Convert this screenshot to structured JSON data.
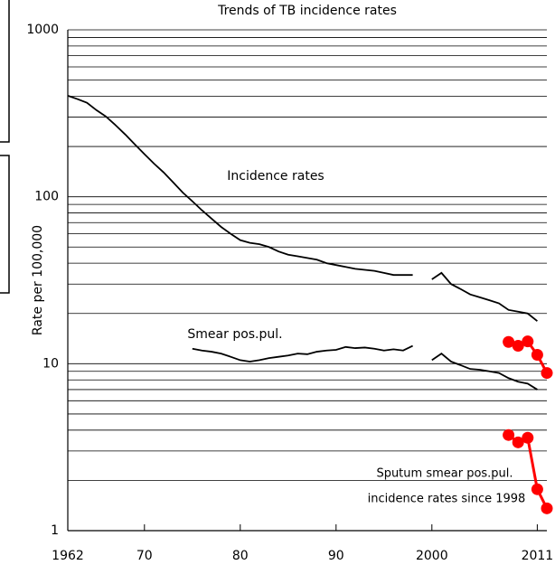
{
  "chart_data": {
    "type": "line",
    "title": "Trends of TB incidence rates",
    "ylabel": "Rate per 100,000",
    "log_y": true,
    "grid": true,
    "minor_grid": true,
    "xlim": [
      1962,
      2012
    ],
    "ylim": [
      1,
      1000
    ],
    "xticks": [
      1962,
      {
        "value": 1970,
        "label": "70"
      },
      {
        "value": 1980,
        "label": "80"
      },
      {
        "value": 1990,
        "label": "90"
      },
      2000,
      2011
    ],
    "yticks": [
      1,
      10,
      100,
      1000
    ],
    "x": [
      1962,
      1963,
      1964,
      1965,
      1966,
      1967,
      1968,
      1969,
      1970,
      1971,
      1972,
      1973,
      1974,
      1975,
      1976,
      1977,
      1978,
      1979,
      1980,
      1981,
      1982,
      1983,
      1984,
      1985,
      1986,
      1987,
      1988,
      1989,
      1990,
      1991,
      1992,
      1993,
      1994,
      1995,
      1996,
      1997,
      1998,
      1999,
      2000,
      2001,
      2002,
      2003,
      2004,
      2005,
      2006,
      2007,
      2008,
      2009,
      2010,
      2011
    ],
    "annotations": [
      "Incidence rates",
      "Smear pos.pul.",
      "Sputum smear pos.pul.",
      "incidence rates since 1998"
    ],
    "series": [
      {
        "color": "#000000",
        "values": [
          403,
          385,
          366,
          330,
          302,
          268,
          236,
          206,
          180,
          158,
          140,
          122,
          106,
          94,
          83,
          74,
          66,
          60,
          55,
          53,
          52,
          50,
          47,
          45,
          44,
          43,
          42,
          40,
          39,
          38,
          37,
          36.5,
          36,
          35,
          34,
          34,
          34,
          null,
          32,
          35,
          30,
          28,
          26,
          25,
          24,
          23,
          21,
          20.5,
          20,
          18
        ]
      },
      {
        "color": "#000000",
        "values": [
          null,
          null,
          null,
          null,
          null,
          null,
          null,
          null,
          null,
          null,
          null,
          null,
          null,
          12.3,
          12,
          11.8,
          11.5,
          11,
          10.5,
          10.3,
          10.5,
          10.8,
          11,
          11.2,
          11.5,
          11.4,
          11.8,
          12,
          12.1,
          12.6,
          12.4,
          12.5,
          12.3,
          12,
          12.2,
          12,
          12.8,
          null,
          10.5,
          11.5,
          10.3,
          9.8,
          9.3,
          9.2,
          9,
          8.8,
          8.2,
          7.8,
          7.6,
          7
        ]
      },
      {
        "color": "#ff0000",
        "markers": true,
        "x": [
          2008,
          2009,
          2010,
          2011,
          2012
        ],
        "values": [
          13.5,
          12.8,
          13.6,
          11.3,
          8.8
        ]
      },
      {
        "color": "#ff0000",
        "markers": true,
        "x": [
          2008,
          2009,
          2010,
          2011,
          2012
        ],
        "values": [
          3.74,
          3.38,
          3.6,
          1.77,
          1.36
        ]
      }
    ]
  }
}
